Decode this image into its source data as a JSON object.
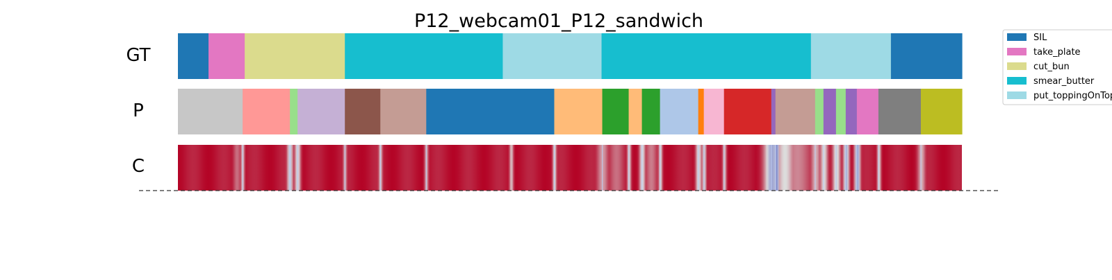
{
  "chart_data": {
    "type": "segmentation_timeline",
    "title": "P12_webcam01_P12_sandwich",
    "frames": 1127,
    "row_labels": [
      "GT",
      "P",
      "C"
    ],
    "legend_position": "top-right",
    "legend": [
      {
        "label": "SIL",
        "color": "#1f77b4"
      },
      {
        "label": "take_plate",
        "color": "#e377c2"
      },
      {
        "label": "cut_bun",
        "color": "#dbdb8d"
      },
      {
        "label": "smear_butter",
        "color": "#17becf"
      },
      {
        "label": "put_toppingOnTop",
        "color": "#9edae5"
      }
    ],
    "gt_segments": [
      {
        "start": 0,
        "end": 44,
        "color": "#1f77b4"
      },
      {
        "start": 44,
        "end": 96,
        "color": "#e377c2"
      },
      {
        "start": 96,
        "end": 240,
        "color": "#dbdb8d"
      },
      {
        "start": 240,
        "end": 467,
        "color": "#17becf"
      },
      {
        "start": 467,
        "end": 609,
        "color": "#9edae5"
      },
      {
        "start": 609,
        "end": 910,
        "color": "#17becf"
      },
      {
        "start": 910,
        "end": 1025,
        "color": "#9edae5"
      },
      {
        "start": 1025,
        "end": 1127,
        "color": "#1f77b4"
      }
    ],
    "pred_segments": [
      {
        "start": 0,
        "end": 93,
        "color": "#c7c7c7"
      },
      {
        "start": 93,
        "end": 161,
        "color": "#ff9896"
      },
      {
        "start": 161,
        "end": 172,
        "color": "#98df8a"
      },
      {
        "start": 172,
        "end": 240,
        "color": "#c5b0d5"
      },
      {
        "start": 240,
        "end": 291,
        "color": "#8c564b"
      },
      {
        "start": 291,
        "end": 357,
        "color": "#c49c94"
      },
      {
        "start": 357,
        "end": 541,
        "color": "#1f77b4"
      },
      {
        "start": 541,
        "end": 610,
        "color": "#ffbb78"
      },
      {
        "start": 610,
        "end": 648,
        "color": "#2ca02c"
      },
      {
        "start": 648,
        "end": 667,
        "color": "#ffbb78"
      },
      {
        "start": 667,
        "end": 693,
        "color": "#2ca02c"
      },
      {
        "start": 693,
        "end": 748,
        "color": "#aec7e8"
      },
      {
        "start": 748,
        "end": 756,
        "color": "#ff7f0e"
      },
      {
        "start": 756,
        "end": 785,
        "color": "#f7b6d2"
      },
      {
        "start": 785,
        "end": 853,
        "color": "#d62728"
      },
      {
        "start": 853,
        "end": 859,
        "color": "#9467bd"
      },
      {
        "start": 859,
        "end": 916,
        "color": "#c49c94"
      },
      {
        "start": 916,
        "end": 928,
        "color": "#98df8a"
      },
      {
        "start": 928,
        "end": 946,
        "color": "#9467bd"
      },
      {
        "start": 946,
        "end": 960,
        "color": "#98df8a"
      },
      {
        "start": 960,
        "end": 976,
        "color": "#9467bd"
      },
      {
        "start": 976,
        "end": 1007,
        "color": "#e377c2"
      },
      {
        "start": 1007,
        "end": 1068,
        "color": "#7f7f7f"
      },
      {
        "start": 1068,
        "end": 1127,
        "color": "#bcbd22"
      }
    ],
    "confidence_colormap": [
      "#3b4cc0",
      "#dddddd",
      "#b40426"
    ],
    "confidence_dips": [
      {
        "frame": 85,
        "value": 0.75,
        "width": 4
      },
      {
        "frame": 93,
        "value": 0.55,
        "width": 2
      },
      {
        "frame": 161,
        "value": 0.4,
        "width": 3
      },
      {
        "frame": 172,
        "value": 0.45,
        "width": 3
      },
      {
        "frame": 240,
        "value": 0.6,
        "width": 2
      },
      {
        "frame": 291,
        "value": 0.55,
        "width": 2
      },
      {
        "frame": 357,
        "value": 0.6,
        "width": 2
      },
      {
        "frame": 479,
        "value": 0.55,
        "width": 2
      },
      {
        "frame": 541,
        "value": 0.5,
        "width": 2
      },
      {
        "frame": 610,
        "value": 0.65,
        "width": 6
      },
      {
        "frame": 630,
        "value": 0.75,
        "width": 8
      },
      {
        "frame": 648,
        "value": 0.5,
        "width": 2
      },
      {
        "frame": 667,
        "value": 0.45,
        "width": 3
      },
      {
        "frame": 680,
        "value": 0.72,
        "width": 6
      },
      {
        "frame": 693,
        "value": 0.5,
        "width": 2
      },
      {
        "frame": 748,
        "value": 0.45,
        "width": 3
      },
      {
        "frame": 756,
        "value": 0.45,
        "width": 2
      },
      {
        "frame": 785,
        "value": 0.55,
        "width": 2
      },
      {
        "frame": 853,
        "value": 0.3,
        "width": 8
      },
      {
        "frame": 860,
        "value": 0.2,
        "width": 3
      },
      {
        "frame": 872,
        "value": 0.5,
        "width": 10
      },
      {
        "frame": 890,
        "value": 0.7,
        "width": 14
      },
      {
        "frame": 916,
        "value": 0.6,
        "width": 5
      },
      {
        "frame": 928,
        "value": 0.5,
        "width": 4
      },
      {
        "frame": 946,
        "value": 0.45,
        "width": 4
      },
      {
        "frame": 960,
        "value": 0.3,
        "width": 3
      },
      {
        "frame": 976,
        "value": 0.25,
        "width": 3
      },
      {
        "frame": 1007,
        "value": 0.5,
        "width": 2
      },
      {
        "frame": 1068,
        "value": 0.6,
        "width": 4
      }
    ]
  }
}
